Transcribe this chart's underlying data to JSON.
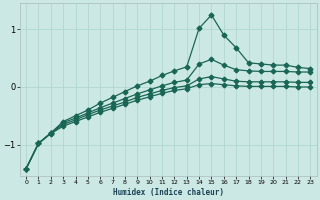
{
  "xlabel": "Humidex (Indice chaleur)",
  "background_color": "#cce8e4",
  "grid_color": "#aad4cc",
  "line_color": "#1a6655",
  "xlim": [
    -0.5,
    23.5
  ],
  "ylim": [
    -1.55,
    1.45
  ],
  "xticks": [
    0,
    1,
    2,
    3,
    4,
    5,
    6,
    7,
    8,
    9,
    10,
    11,
    12,
    13,
    14,
    15,
    16,
    17,
    18,
    19,
    20,
    21,
    22,
    23
  ],
  "yticks": [
    -1,
    0,
    1
  ],
  "series": [
    {
      "x": [
        0,
        1,
        2,
        3,
        4,
        5,
        6,
        7,
        8,
        9,
        10,
        11,
        12,
        13,
        14,
        15,
        16,
        17,
        18,
        19,
        20,
        21,
        22,
        23
      ],
      "y": [
        -1.42,
        -0.98,
        -0.8,
        -0.6,
        -0.5,
        -0.4,
        -0.28,
        -0.18,
        -0.08,
        0.02,
        0.1,
        0.2,
        0.28,
        0.35,
        1.02,
        1.25,
        0.9,
        0.68,
        0.42,
        0.4,
        0.38,
        0.38,
        0.34,
        0.32
      ],
      "marker": "D",
      "markersize": 2.5,
      "linewidth": 0.9
    },
    {
      "x": [
        0,
        1,
        2,
        3,
        4,
        5,
        6,
        7,
        8,
        9,
        10,
        11,
        12,
        13,
        14,
        15,
        16,
        17,
        18,
        19,
        20,
        21,
        22,
        23
      ],
      "y": [
        -1.42,
        -0.98,
        -0.8,
        -0.62,
        -0.54,
        -0.45,
        -0.36,
        -0.28,
        -0.2,
        -0.12,
        -0.05,
        0.02,
        0.08,
        0.12,
        0.4,
        0.48,
        0.38,
        0.3,
        0.28,
        0.27,
        0.27,
        0.27,
        0.26,
        0.26
      ],
      "marker": "P",
      "markersize": 3,
      "linewidth": 0.9
    },
    {
      "x": [
        0,
        1,
        2,
        3,
        4,
        5,
        6,
        7,
        8,
        9,
        10,
        11,
        12,
        13,
        14,
        15,
        16,
        17,
        18,
        19,
        20,
        21,
        22,
        23
      ],
      "y": [
        -1.42,
        -0.98,
        -0.8,
        -0.65,
        -0.57,
        -0.48,
        -0.4,
        -0.33,
        -0.26,
        -0.18,
        -0.12,
        -0.06,
        -0.01,
        0.02,
        0.14,
        0.18,
        0.14,
        0.1,
        0.09,
        0.09,
        0.09,
        0.09,
        0.08,
        0.08
      ],
      "marker": "P",
      "markersize": 3,
      "linewidth": 0.9
    },
    {
      "x": [
        0,
        1,
        2,
        3,
        4,
        5,
        6,
        7,
        8,
        9,
        10,
        11,
        12,
        13,
        14,
        15,
        16,
        17,
        18,
        19,
        20,
        21,
        22,
        23
      ],
      "y": [
        -1.42,
        -0.98,
        -0.81,
        -0.68,
        -0.6,
        -0.52,
        -0.44,
        -0.37,
        -0.3,
        -0.23,
        -0.17,
        -0.11,
        -0.06,
        -0.03,
        0.04,
        0.06,
        0.04,
        0.02,
        0.01,
        0.01,
        0.01,
        0.01,
        0.0,
        0.0
      ],
      "marker": "P",
      "markersize": 3,
      "linewidth": 0.9
    }
  ]
}
